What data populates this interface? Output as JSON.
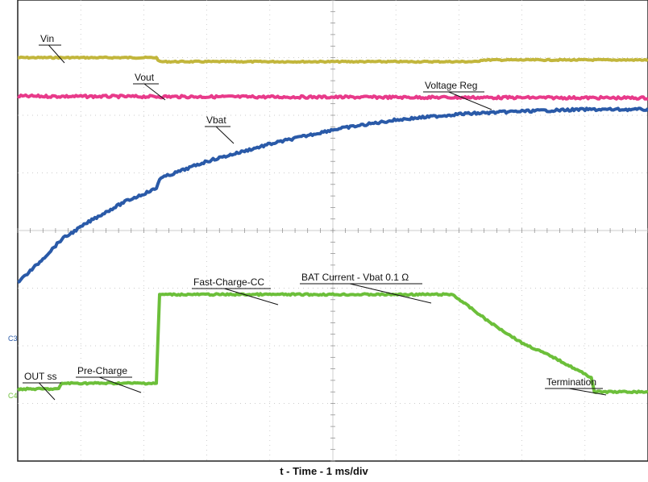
{
  "chart_data": {
    "type": "line",
    "xlabel": "t - Time - 1 ms/div",
    "x_unit": "ms",
    "xlim": [
      0,
      10
    ],
    "ylim": [
      -4,
      4
    ],
    "grid": true,
    "series": [
      {
        "name": "Vin",
        "color": "#c2b63c",
        "points": [
          [
            0,
            3.0
          ],
          [
            2.2,
            3.0
          ],
          [
            2.25,
            2.93
          ],
          [
            7.3,
            2.93
          ],
          [
            7.35,
            2.96
          ],
          [
            10,
            2.96
          ]
        ]
      },
      {
        "name": "Vout",
        "color": "#e83a8a",
        "points": [
          [
            0,
            2.33
          ],
          [
            10,
            2.3
          ]
        ]
      },
      {
        "name": "Vbat",
        "color": "#2a5aa8",
        "points": [
          [
            0,
            -0.9
          ],
          [
            0.3,
            -0.6
          ],
          [
            0.7,
            -0.15
          ],
          [
            1.2,
            0.2
          ],
          [
            1.7,
            0.5
          ],
          [
            2.2,
            0.73
          ],
          [
            2.25,
            0.9
          ],
          [
            3.0,
            1.2
          ],
          [
            4.0,
            1.5
          ],
          [
            5.0,
            1.75
          ],
          [
            6.0,
            1.92
          ],
          [
            7.0,
            2.02
          ],
          [
            8.0,
            2.07
          ],
          [
            9.0,
            2.1
          ],
          [
            10,
            2.1
          ]
        ]
      }
    ],
    "current_trace": {
      "name": "BAT Current - Vbat 0.1 Ω",
      "color": "#6cbf3a",
      "points": [
        [
          0,
          -2.75
        ],
        [
          0.65,
          -2.75
        ],
        [
          0.7,
          -2.65
        ],
        [
          2.2,
          -2.65
        ],
        [
          2.25,
          -1.11
        ],
        [
          6.9,
          -1.11
        ],
        [
          7.5,
          -1.6
        ],
        [
          8.0,
          -1.95
        ],
        [
          8.5,
          -2.2
        ],
        [
          9.1,
          -2.55
        ],
        [
          9.15,
          -2.8
        ],
        [
          10,
          -2.8
        ]
      ]
    },
    "annotations": [
      {
        "text": "Vin"
      },
      {
        "text": "Vout"
      },
      {
        "text": "Vbat"
      },
      {
        "text": "Voltage Reg"
      },
      {
        "text": "Fast-Charge-CC"
      },
      {
        "text": "BAT Current - Vbat 0.1 Ω"
      },
      {
        "text": "OUT ss"
      },
      {
        "text": "Pre-Charge"
      },
      {
        "text": "Termination"
      }
    ],
    "channel_markers": [
      {
        "text": "C3",
        "color": "#2a5aa8"
      },
      {
        "text": "C4",
        "color": "#6cbf3a"
      }
    ]
  }
}
